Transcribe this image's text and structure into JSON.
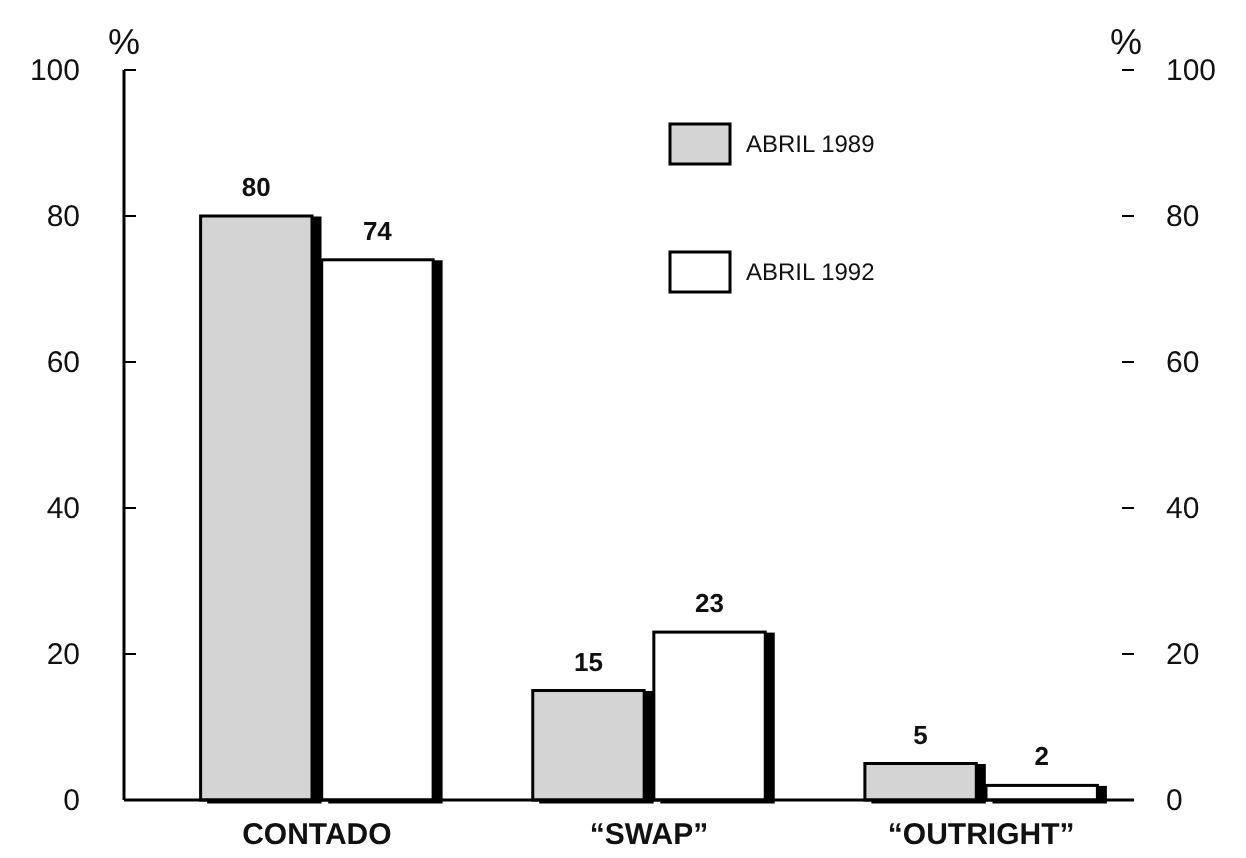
{
  "chart_data": {
    "type": "bar",
    "categories": [
      "CONTADO",
      "“SWAP”",
      "“OUTRIGHT”"
    ],
    "series": [
      {
        "name": "ABRIL 1989",
        "color": "#d4d4d4",
        "values": [
          80,
          15,
          5
        ]
      },
      {
        "name": "ABRIL 1992",
        "color": "#ffffff",
        "values": [
          74,
          23,
          2
        ]
      }
    ],
    "ylabel": "%",
    "y2label": "%",
    "ylim": [
      0,
      100
    ],
    "yticks": [
      0,
      20,
      40,
      60,
      80,
      100
    ],
    "y2lim": [
      0,
      100
    ],
    "y2ticks": [
      0,
      20,
      40,
      60,
      80,
      100
    ],
    "data_labels": true,
    "legend": "top right",
    "grid": false
  }
}
